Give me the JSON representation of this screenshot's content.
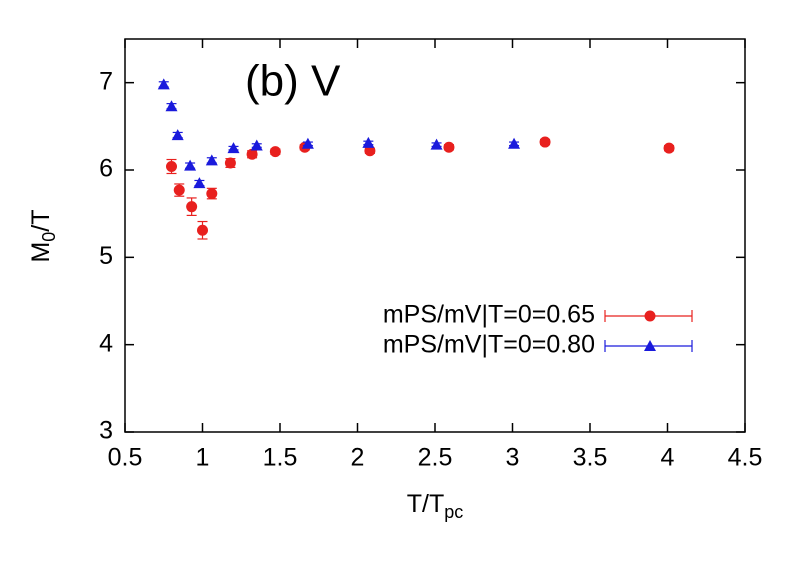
{
  "chart_data": {
    "type": "scatter",
    "annotation": "(b) V",
    "x_label": [
      "T/T",
      "pc"
    ],
    "y_label": [
      "M",
      "0",
      "/T"
    ],
    "xlim": [
      0.5,
      4.5
    ],
    "xticks": [
      0.5,
      1,
      1.5,
      2,
      2.5,
      3,
      3.5,
      4,
      4.5
    ],
    "ylim": [
      3,
      7.5
    ],
    "yticks": [
      3,
      4,
      5,
      6,
      7
    ],
    "grid": false,
    "legend": "right",
    "series": [
      {
        "name": "mPS/mV|T=0=0.65",
        "color": "#e8201e",
        "marker": "circle",
        "x": [
          0.8,
          0.85,
          0.93,
          1.0,
          1.06,
          1.18,
          1.32,
          1.47,
          1.66,
          2.08,
          2.59,
          3.21,
          4.01
        ],
        "values": [
          6.04,
          5.77,
          5.58,
          5.31,
          5.73,
          6.08,
          6.18,
          6.21,
          6.26,
          6.22,
          6.26,
          6.32,
          6.25
        ],
        "errors": [
          0.08,
          0.07,
          0.1,
          0.1,
          0.06,
          0.05,
          0.04,
          0.03,
          0.03,
          0.03,
          0.03,
          0.03,
          0.03
        ]
      },
      {
        "name": "mPS/mV|T=0=0.80",
        "color": "#1a1adc",
        "marker": "triangle",
        "x": [
          0.75,
          0.8,
          0.84,
          0.92,
          0.98,
          1.06,
          1.2,
          1.35,
          1.68,
          2.07,
          2.51,
          3.01
        ],
        "values": [
          6.98,
          6.73,
          6.4,
          6.05,
          5.85,
          6.11,
          6.25,
          6.28,
          6.3,
          6.31,
          6.29,
          6.3
        ],
        "errors": [
          0.03,
          0.03,
          0.03,
          0.03,
          0.03,
          0.03,
          0.02,
          0.02,
          0.02,
          0.02,
          0.02,
          0.02
        ]
      }
    ]
  }
}
